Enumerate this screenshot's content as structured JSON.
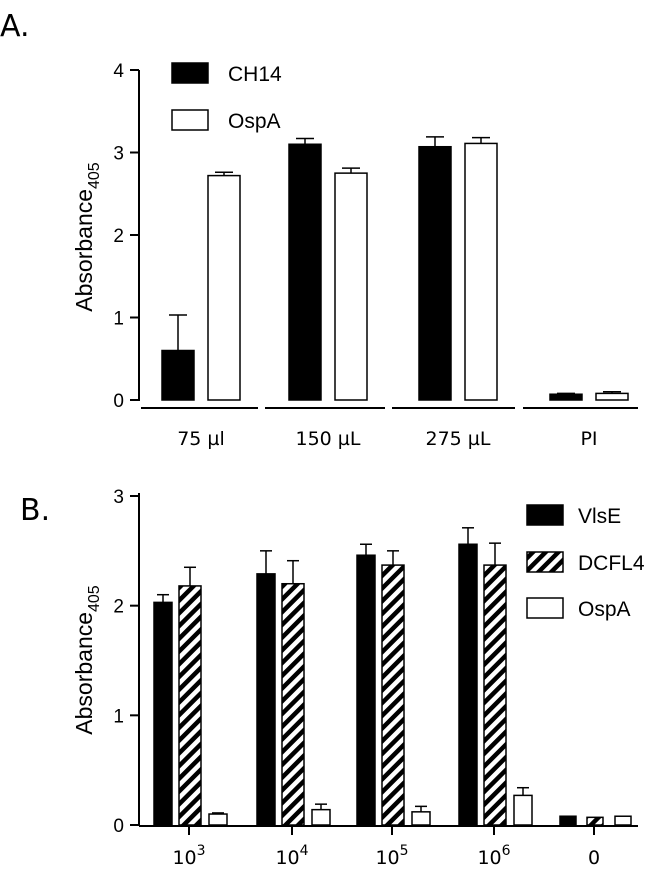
{
  "chart_data": [
    {
      "panel": "A.",
      "type": "bar",
      "categories": [
        "75 µl",
        "150 µL",
        "275 µL",
        "PI"
      ],
      "series": [
        {
          "name": "CH14",
          "fill": "solid",
          "color": "#000000",
          "values": [
            0.6,
            3.1,
            3.07,
            0.07
          ],
          "errors": [
            0.43,
            0.07,
            0.12,
            0.01
          ]
        },
        {
          "name": "OspA",
          "fill": "open",
          "color": "#ffffff",
          "values": [
            2.72,
            2.75,
            3.11,
            0.08
          ],
          "errors": [
            0.04,
            0.06,
            0.07,
            0.02
          ]
        }
      ],
      "ylabel_main": "Absorbance",
      "ylabel_sub": "405",
      "ylim": [
        0,
        4
      ],
      "yticks": [
        "0",
        "1",
        "2",
        "3",
        "4"
      ],
      "legend_position": "top-left"
    },
    {
      "panel": "B.",
      "type": "bar",
      "categories": [
        {
          "base": "10",
          "exp": "3"
        },
        {
          "base": "10",
          "exp": "4"
        },
        {
          "base": "10",
          "exp": "5"
        },
        {
          "base": "10",
          "exp": "6"
        },
        {
          "base": "0",
          "exp": ""
        }
      ],
      "series": [
        {
          "name": "VlsE",
          "fill": "solid",
          "color": "#000000",
          "values": [
            2.03,
            2.29,
            2.46,
            2.56,
            0.08
          ],
          "errors": [
            0.07,
            0.21,
            0.1,
            0.15,
            0.0
          ]
        },
        {
          "name": "DCFL4",
          "fill": "hatched",
          "color": "#000000",
          "values": [
            2.18,
            2.2,
            2.37,
            2.37,
            0.07
          ],
          "errors": [
            0.17,
            0.21,
            0.13,
            0.2,
            0.0
          ]
        },
        {
          "name": "OspA",
          "fill": "open",
          "color": "#ffffff",
          "values": [
            0.1,
            0.14,
            0.12,
            0.27,
            0.08
          ],
          "errors": [
            0.01,
            0.05,
            0.05,
            0.07,
            0.0
          ]
        }
      ],
      "ylabel_main": "Absorbance",
      "ylabel_sub": "405",
      "ylim": [
        0,
        3
      ],
      "yticks": [
        "0",
        "1",
        "2",
        "3"
      ],
      "legend_position": "top-right"
    }
  ]
}
